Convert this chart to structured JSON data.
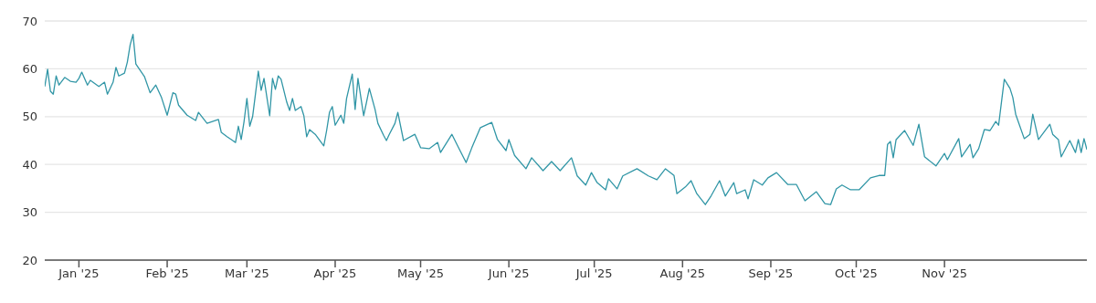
{
  "chart_data": {
    "type": "line",
    "x": [
      "2024-12-20",
      "2024-12-21",
      "2024-12-22",
      "2024-12-23",
      "2024-12-24",
      "2024-12-25",
      "2024-12-27",
      "2024-12-29",
      "2024-12-31",
      "2025-01-01",
      "2025-01-02",
      "2025-01-04",
      "2025-01-05",
      "2025-01-08",
      "2025-01-10",
      "2025-01-11",
      "2025-01-13",
      "2025-01-14",
      "2025-01-15",
      "2025-01-17",
      "2025-01-18",
      "2025-01-19",
      "2025-01-20",
      "2025-01-21",
      "2025-01-24",
      "2025-01-26",
      "2025-01-28",
      "2025-01-30",
      "2025-02-01",
      "2025-02-03",
      "2025-02-04",
      "2025-02-05",
      "2025-02-08",
      "2025-02-11",
      "2025-02-12",
      "2025-02-15",
      "2025-02-19",
      "2025-02-20",
      "2025-02-22",
      "2025-02-25",
      "2025-02-26",
      "2025-02-27",
      "2025-02-28",
      "2025-03-01",
      "2025-03-02",
      "2025-03-03",
      "2025-03-04",
      "2025-03-05",
      "2025-03-06",
      "2025-03-07",
      "2025-03-09",
      "2025-03-10",
      "2025-03-11",
      "2025-03-12",
      "2025-03-13",
      "2025-03-15",
      "2025-03-16",
      "2025-03-17",
      "2025-03-18",
      "2025-03-20",
      "2025-03-21",
      "2025-03-22",
      "2025-03-23",
      "2025-03-25",
      "2025-03-28",
      "2025-03-29",
      "2025-03-30",
      "2025-03-31",
      "2025-04-01",
      "2025-04-03",
      "2025-04-04",
      "2025-04-05",
      "2025-04-07",
      "2025-04-08",
      "2025-04-09",
      "2025-04-11",
      "2025-04-12",
      "2025-04-13",
      "2025-04-15",
      "2025-04-16",
      "2025-04-18",
      "2025-04-19",
      "2025-04-20",
      "2025-04-22",
      "2025-04-23",
      "2025-04-25",
      "2025-04-29",
      "2025-05-01",
      "2025-05-04",
      "2025-05-07",
      "2025-05-08",
      "2025-05-12",
      "2025-05-14",
      "2025-05-17",
      "2025-05-19",
      "2025-05-22",
      "2025-05-26",
      "2025-05-28",
      "2025-05-31",
      "2025-06-01",
      "2025-06-03",
      "2025-06-07",
      "2025-06-09",
      "2025-06-13",
      "2025-06-16",
      "2025-06-19",
      "2025-06-23",
      "2025-06-25",
      "2025-06-28",
      "2025-06-30",
      "2025-07-02",
      "2025-07-05",
      "2025-07-06",
      "2025-07-09",
      "2025-07-11",
      "2025-07-16",
      "2025-07-20",
      "2025-07-23",
      "2025-07-26",
      "2025-07-29",
      "2025-07-30",
      "2025-08-02",
      "2025-08-04",
      "2025-08-06",
      "2025-08-09",
      "2025-08-11",
      "2025-08-14",
      "2025-08-16",
      "2025-08-19",
      "2025-08-20",
      "2025-08-23",
      "2025-08-24",
      "2025-08-26",
      "2025-08-29",
      "2025-08-31",
      "2025-09-03",
      "2025-09-07",
      "2025-09-10",
      "2025-09-13",
      "2025-09-17",
      "2025-09-20",
      "2025-09-22",
      "2025-09-24",
      "2025-09-26",
      "2025-09-29",
      "2025-10-02",
      "2025-10-06",
      "2025-10-09",
      "2025-10-11",
      "2025-10-12",
      "2025-10-13",
      "2025-10-14",
      "2025-10-15",
      "2025-10-18",
      "2025-10-21",
      "2025-10-23",
      "2025-10-25",
      "2025-10-29",
      "2025-11-01",
      "2025-11-02",
      "2025-11-06",
      "2025-11-07",
      "2025-11-10",
      "2025-11-11",
      "2025-11-13",
      "2025-11-15",
      "2025-11-17",
      "2025-11-19",
      "2025-11-20",
      "2025-11-22",
      "2025-11-24",
      "2025-11-25",
      "2025-11-26",
      "2025-11-29",
      "2025-12-01",
      "2025-12-02",
      "2025-12-04",
      "2025-12-08",
      "2025-12-09",
      "2025-12-11",
      "2025-12-12",
      "2025-12-15",
      "2025-12-17",
      "2025-12-18",
      "2025-12-19",
      "2025-12-20",
      "2025-12-21"
    ],
    "series": [
      {
        "color": "#3196a6",
        "values": [
          56.3,
          59.9,
          55.3,
          54.7,
          58.5,
          56.6,
          58.2,
          57.4,
          57.2,
          58.0,
          59.3,
          56.6,
          57.6,
          56.3,
          57.2,
          54.7,
          57.2,
          60.3,
          58.5,
          59.1,
          61.4,
          65.0,
          67.2,
          61.0,
          58.4,
          55.0,
          56.6,
          54.0,
          50.3,
          55.0,
          54.7,
          52.4,
          50.3,
          49.2,
          50.9,
          48.6,
          49.4,
          46.7,
          45.8,
          44.6,
          48.0,
          45.2,
          49.0,
          53.8,
          48.0,
          50.0,
          54.7,
          59.5,
          55.5,
          58.0,
          50.2,
          58.0,
          55.7,
          58.5,
          57.8,
          53.0,
          51.3,
          53.8,
          51.3,
          52.1,
          50.2,
          45.8,
          47.3,
          46.3,
          43.9,
          47.1,
          50.9,
          52.1,
          48.2,
          50.3,
          48.6,
          53.8,
          58.9,
          51.5,
          58.0,
          50.2,
          53.0,
          55.9,
          51.5,
          48.6,
          46.1,
          45.0,
          46.3,
          48.6,
          50.9,
          45.0,
          46.3,
          43.5,
          43.3,
          44.6,
          42.5,
          46.3,
          43.9,
          40.4,
          43.5,
          47.7,
          48.8,
          45.2,
          42.9,
          45.2,
          41.9,
          39.1,
          41.4,
          38.7,
          40.6,
          38.7,
          41.4,
          37.6,
          35.7,
          38.3,
          36.2,
          34.7,
          37.0,
          34.9,
          37.6,
          39.1,
          37.6,
          36.8,
          39.1,
          37.7,
          33.9,
          35.3,
          36.6,
          33.9,
          31.6,
          33.4,
          36.6,
          33.4,
          36.2,
          33.9,
          34.7,
          32.8,
          36.8,
          35.7,
          37.2,
          38.3,
          35.8,
          35.8,
          32.4,
          34.3,
          31.8,
          31.6,
          34.9,
          35.7,
          34.7,
          34.7,
          37.2,
          37.7,
          37.7,
          44.2,
          44.8,
          41.4,
          45.2,
          47.1,
          44.0,
          48.4,
          41.6,
          39.7,
          42.3,
          41.0,
          45.4,
          41.6,
          44.2,
          41.4,
          43.3,
          47.3,
          47.1,
          49.0,
          48.2,
          57.8,
          55.9,
          54.0,
          50.5,
          45.4,
          46.3,
          50.5,
          45.2,
          48.4,
          46.3,
          45.2,
          41.6,
          45.0,
          42.5,
          45.2,
          42.5,
          45.4,
          43.1
        ]
      }
    ],
    "xlim": [
      "2024-12-20",
      "2025-12-21"
    ],
    "xticks": [
      {
        "value": "2025-01-01",
        "label": "Jan '25"
      },
      {
        "value": "2025-02-01",
        "label": "Feb '25"
      },
      {
        "value": "2025-03-01",
        "label": "Mar '25"
      },
      {
        "value": "2025-04-01",
        "label": "Apr '25"
      },
      {
        "value": "2025-05-01",
        "label": "May '25"
      },
      {
        "value": "2025-06-01",
        "label": "Jun '25"
      },
      {
        "value": "2025-07-01",
        "label": "Jul '25"
      },
      {
        "value": "2025-08-01",
        "label": "Aug '25"
      },
      {
        "value": "2025-09-01",
        "label": "Sep '25"
      },
      {
        "value": "2025-10-01",
        "label": "Oct '25"
      },
      {
        "value": "2025-11-01",
        "label": "Nov '25"
      }
    ],
    "ylim": [
      20,
      70
    ],
    "yticks": [
      20,
      30,
      40,
      50,
      60,
      70
    ],
    "grid": "y",
    "marker": "none",
    "line_style": "solid"
  }
}
